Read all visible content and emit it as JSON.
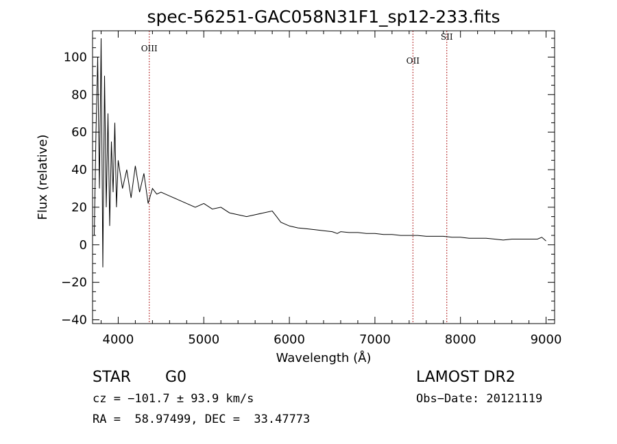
{
  "chart_data": {
    "type": "line",
    "title": "spec-56251-GAC058N31F1_sp12-233.fits",
    "xlabel": "Wavelength (Å)",
    "ylabel": "Flux (relative)",
    "xlim": [
      3700,
      9100
    ],
    "ylim": [
      -42,
      114
    ],
    "xticks": [
      4000,
      5000,
      6000,
      7000,
      8000,
      9000
    ],
    "yticks": [
      -40,
      -20,
      0,
      20,
      40,
      60,
      80,
      100
    ],
    "grid": false,
    "line_color": "#000000",
    "marker_color": "#b22222",
    "lines": [
      {
        "name": "OIII",
        "wavelength": 4363
      },
      {
        "name": "OII",
        "wavelength": 7444
      },
      {
        "name": "SII",
        "wavelength": 7840
      }
    ],
    "series": [
      {
        "x": [
          3720,
          3740,
          3760,
          3780,
          3800,
          3820,
          3840,
          3860,
          3880,
          3900,
          3920,
          3940,
          3960,
          3980,
          4000,
          4050,
          4100,
          4150,
          4200,
          4250,
          4300,
          4350,
          4400,
          4450,
          4500,
          4600,
          4700,
          4800,
          4900,
          5000,
          5100,
          5200,
          5300,
          5400,
          5500,
          5600,
          5700,
          5800,
          5850,
          5900,
          6000,
          6100,
          6200,
          6300,
          6400,
          6500,
          6560,
          6600,
          6700,
          6800,
          6900,
          7000,
          7100,
          7200,
          7300,
          7400,
          7500,
          7600,
          7700,
          7800,
          7900,
          8000,
          8100,
          8200,
          8300,
          8400,
          8500,
          8600,
          8700,
          8800,
          8900,
          8950,
          9000
        ],
        "y": [
          5,
          60,
          100,
          30,
          110,
          -12,
          90,
          20,
          70,
          10,
          55,
          28,
          65,
          20,
          45,
          30,
          40,
          25,
          42,
          28,
          38,
          22,
          30,
          27,
          28,
          26,
          24,
          22,
          20,
          22,
          19,
          20,
          17,
          16,
          15,
          16,
          17,
          18,
          15,
          12,
          10,
          9,
          8.5,
          8,
          7.5,
          7,
          6,
          7,
          6.5,
          6.5,
          6,
          6,
          5.5,
          5.5,
          5,
          5,
          5,
          4.5,
          4.5,
          4.5,
          4,
          4,
          3.5,
          3.5,
          3.5,
          3,
          2.5,
          3,
          3,
          3,
          3,
          4,
          2
        ]
      }
    ]
  },
  "footer": {
    "object_class": "STAR",
    "subclass": "G0",
    "survey": "LAMOST DR2",
    "cz": "cz = −101.7 ± 93.9 km/s",
    "obs_date": "Obs−Date: 20121119",
    "coords": "RA =  58.97499, DEC =  33.47773"
  }
}
